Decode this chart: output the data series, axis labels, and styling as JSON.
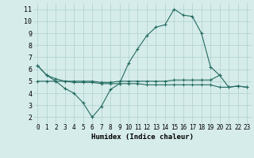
{
  "xlabel": "Humidex (Indice chaleur)",
  "x": [
    0,
    1,
    2,
    3,
    4,
    5,
    6,
    7,
    8,
    9,
    10,
    11,
    12,
    13,
    14,
    15,
    16,
    17,
    18,
    19,
    20,
    21,
    22,
    23
  ],
  "line1": [
    6.3,
    5.5,
    5.0,
    4.4,
    4.0,
    3.2,
    2.0,
    2.9,
    4.3,
    4.8,
    6.5,
    7.7,
    8.8,
    9.5,
    9.7,
    11.0,
    10.5,
    10.4,
    9.0,
    6.2,
    5.5,
    null,
    null,
    null
  ],
  "line2": [
    5.0,
    5.0,
    5.0,
    5.0,
    4.9,
    4.9,
    4.9,
    4.8,
    4.8,
    4.8,
    4.8,
    4.8,
    4.7,
    4.7,
    4.7,
    4.7,
    4.7,
    4.7,
    4.7,
    4.7,
    4.5,
    4.5,
    4.6,
    4.5
  ],
  "line3": [
    6.3,
    5.5,
    5.2,
    5.0,
    5.0,
    5.0,
    5.0,
    4.9,
    4.9,
    5.0,
    5.0,
    5.0,
    5.0,
    5.0,
    5.0,
    5.1,
    5.1,
    5.1,
    5.1,
    5.1,
    5.5,
    4.5,
    4.6,
    4.5
  ],
  "color": "#236b61",
  "bg_color": "#d5ecea",
  "grid_color": "#aed0cd",
  "ylim": [
    1.5,
    11.5
  ],
  "xlim": [
    -0.5,
    23.5
  ],
  "yticks": [
    2,
    3,
    4,
    5,
    6,
    7,
    8,
    9,
    10,
    11
  ],
  "xticks": [
    0,
    1,
    2,
    3,
    4,
    5,
    6,
    7,
    8,
    9,
    10,
    11,
    12,
    13,
    14,
    15,
    16,
    17,
    18,
    19,
    20,
    21,
    22,
    23
  ]
}
